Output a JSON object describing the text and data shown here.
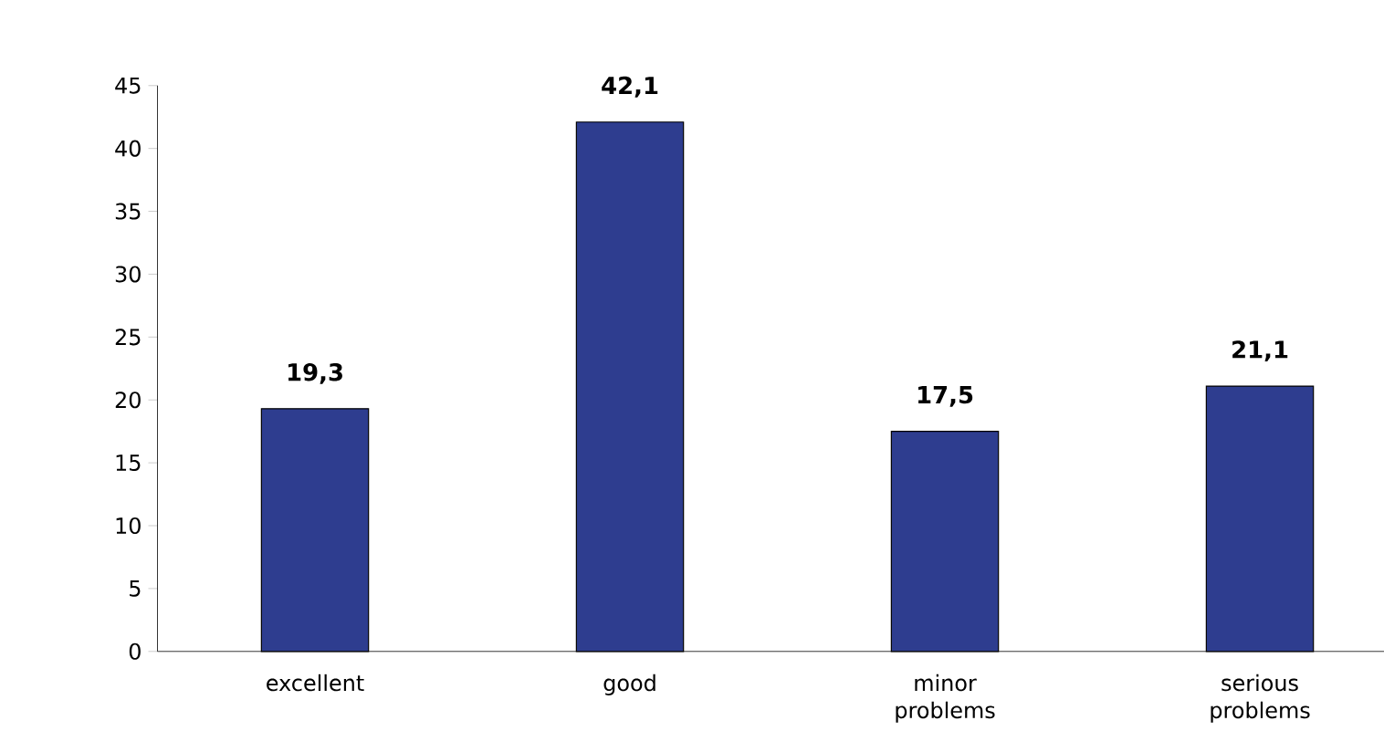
{
  "chart_data": {
    "type": "bar",
    "categories": [
      "excellent",
      "good",
      "minor problems",
      "serious problems"
    ],
    "values": [
      19.3,
      42.1,
      17.5,
      21.1
    ],
    "value_labels": [
      "19,3",
      "42,1",
      "17,5",
      "21,1"
    ],
    "color": "#2e3d8f",
    "ylim": [
      0,
      45
    ],
    "yticks": [
      0,
      5,
      10,
      15,
      20,
      25,
      30,
      35,
      40,
      45
    ],
    "grid": false
  }
}
